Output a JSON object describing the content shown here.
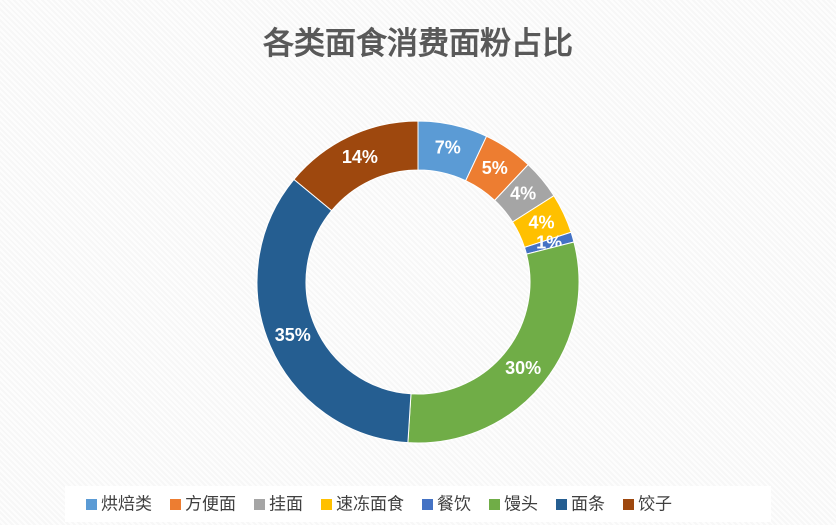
{
  "chart_data": {
    "type": "donut",
    "title": "各类面食消费面粉占比",
    "categories": [
      "烘焙类",
      "方便面",
      "挂面",
      "速冻面食",
      "餐饮",
      "馒头",
      "面条",
      "饺子"
    ],
    "values": [
      7,
      5,
      4,
      4,
      1,
      30,
      35,
      14
    ],
    "value_labels": [
      "7%",
      "5%",
      "4%",
      "4%",
      "1%",
      "30%",
      "35%",
      "14%"
    ],
    "colors": [
      "#5b9bd5",
      "#ed7d31",
      "#a5a5a5",
      "#ffc000",
      "#4472c4",
      "#70ad47",
      "#255e91",
      "#9e480e"
    ],
    "legend": "bottom"
  }
}
